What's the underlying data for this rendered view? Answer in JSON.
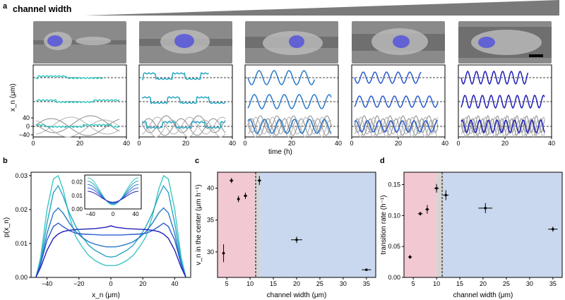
{
  "figure": {
    "panel_labels": {
      "a": "a",
      "b": "b",
      "c": "c",
      "d": "d"
    },
    "channel_width_label": "channel width"
  },
  "panel_a": {
    "x_axis_label": "time (h)",
    "y_axis_label": "x_n (μm)",
    "x_ticks": [
      "0",
      "20",
      "40"
    ],
    "y_ticks": [
      "40",
      "0",
      "−40"
    ],
    "columns": 5,
    "colors": [
      "#3cc8c3",
      "#2aa6c2",
      "#2a79c9",
      "#2a5ccf",
      "#2020b8"
    ]
  },
  "chart_data": [
    {
      "type": "line",
      "panel": "b",
      "xlabel": "x_n (μm)",
      "ylabel": "p(x_n)",
      "xlim": [
        -50,
        50
      ],
      "ylim": [
        0,
        0.031
      ],
      "x_ticks": [
        -40,
        -20,
        0,
        20,
        40
      ],
      "y_ticks": [
        0.0,
        0.01,
        0.02,
        0.03
      ],
      "x": [
        -47,
        -44,
        -40,
        -36,
        -33,
        -30,
        -26,
        -22,
        -18,
        -14,
        -10,
        -6,
        -3,
        0,
        3,
        6,
        10,
        14,
        18,
        22,
        26,
        30,
        33,
        36,
        40,
        44,
        47
      ],
      "series": [
        {
          "color": "#3cc8c3",
          "values": [
            0.0,
            0.006,
            0.02,
            0.029,
            0.03,
            0.026,
            0.018,
            0.012,
            0.009,
            0.0065,
            0.005,
            0.004,
            0.0035,
            0.0035,
            0.0035,
            0.004,
            0.005,
            0.0065,
            0.009,
            0.012,
            0.018,
            0.026,
            0.03,
            0.029,
            0.02,
            0.006,
            0.0
          ]
        },
        {
          "color": "#2aa6c2",
          "values": [
            0.0,
            0.005,
            0.016,
            0.025,
            0.027,
            0.024,
            0.019,
            0.015,
            0.012,
            0.0095,
            0.008,
            0.007,
            0.0062,
            0.006,
            0.0062,
            0.007,
            0.008,
            0.0095,
            0.012,
            0.015,
            0.019,
            0.024,
            0.027,
            0.025,
            0.016,
            0.005,
            0.0
          ]
        },
        {
          "color": "#2a79c9",
          "values": [
            0.0,
            0.004,
            0.013,
            0.019,
            0.0205,
            0.019,
            0.016,
            0.0135,
            0.0118,
            0.0105,
            0.0098,
            0.0093,
            0.009,
            0.009,
            0.009,
            0.0093,
            0.0098,
            0.0105,
            0.0118,
            0.0135,
            0.016,
            0.019,
            0.0205,
            0.019,
            0.013,
            0.004,
            0.0
          ]
        },
        {
          "color": "#2a5ccf",
          "values": [
            0.0,
            0.004,
            0.011,
            0.015,
            0.016,
            0.015,
            0.0138,
            0.013,
            0.0128,
            0.0127,
            0.0126,
            0.0125,
            0.0125,
            0.0125,
            0.0125,
            0.0125,
            0.0126,
            0.0127,
            0.0128,
            0.013,
            0.0138,
            0.015,
            0.016,
            0.015,
            0.011,
            0.004,
            0.0
          ]
        },
        {
          "color": "#2020b8",
          "values": [
            0.0,
            0.003,
            0.008,
            0.0115,
            0.0128,
            0.0135,
            0.0139,
            0.0141,
            0.0142,
            0.0143,
            0.0144,
            0.0146,
            0.0148,
            0.0152,
            0.0148,
            0.0146,
            0.0144,
            0.0143,
            0.0142,
            0.0141,
            0.0139,
            0.0135,
            0.0128,
            0.0115,
            0.008,
            0.003,
            0.0
          ]
        }
      ],
      "inset": {
        "x_ticks": [
          -40,
          0,
          40
        ],
        "y_ticks": [
          0.0,
          0.01,
          0.02
        ],
        "ylim": [
          0,
          0.025
        ]
      }
    },
    {
      "type": "scatter",
      "panel": "c",
      "xlabel": "channel width (μm)",
      "ylabel": "v_n in the center (μm h⁻¹)",
      "xlim": [
        3,
        37
      ],
      "ylim": [
        26,
        42.5
      ],
      "x_ticks": [
        5,
        10,
        15,
        20,
        25,
        30,
        35
      ],
      "y_ticks": [
        30,
        35,
        40
      ],
      "points": [
        {
          "x": 4.3,
          "y": 29.8,
          "xerr": 0.3,
          "yerr": 1.4
        },
        {
          "x": 6.0,
          "y": 41.2,
          "xerr": 0.4,
          "yerr": 0.4
        },
        {
          "x": 7.5,
          "y": 38.3,
          "xerr": 0.3,
          "yerr": 0.5
        },
        {
          "x": 9.0,
          "y": 38.8,
          "xerr": 0.4,
          "yerr": 0.5
        },
        {
          "x": 12.0,
          "y": 41.2,
          "xerr": 0.4,
          "yerr": 0.7
        },
        {
          "x": 20.0,
          "y": 31.9,
          "xerr": 1.2,
          "yerr": 0.5
        },
        {
          "x": 35.0,
          "y": 27.2,
          "xerr": 1.0,
          "yerr": 0.15
        }
      ],
      "regions": [
        {
          "from": 3,
          "to": 11,
          "color": "#f2c8d2"
        },
        {
          "from": 11,
          "to": 12.2,
          "color": "#d4d4d4"
        },
        {
          "from": 12.2,
          "to": 37,
          "color": "#c9d8ee"
        }
      ],
      "dashed_line_x": 11.2
    },
    {
      "type": "scatter",
      "panel": "d",
      "xlabel": "channel width (μm)",
      "ylabel": "transition rate (h⁻¹)",
      "xlim": [
        3,
        37
      ],
      "ylim": [
        0,
        0.17
      ],
      "x_ticks": [
        5,
        10,
        15,
        20,
        25,
        30,
        35
      ],
      "y_ticks": [
        "0.00",
        "0.05",
        "0.10",
        "0.15"
      ],
      "points": [
        {
          "x": 4.3,
          "y": 0.033,
          "xerr": 0.4,
          "yerr": 0.003
        },
        {
          "x": 6.5,
          "y": 0.103,
          "xerr": 0.5,
          "yerr": 0.003
        },
        {
          "x": 8.0,
          "y": 0.11,
          "xerr": 0.4,
          "yerr": 0.007
        },
        {
          "x": 10.0,
          "y": 0.144,
          "xerr": 0.5,
          "yerr": 0.007
        },
        {
          "x": 12.0,
          "y": 0.133,
          "xerr": 0.6,
          "yerr": 0.008
        },
        {
          "x": 20.5,
          "y": 0.112,
          "xerr": 1.5,
          "yerr": 0.008
        },
        {
          "x": 35.0,
          "y": 0.078,
          "xerr": 1.0,
          "yerr": 0.004
        }
      ],
      "regions": [
        {
          "from": 3,
          "to": 10,
          "color": "#f2c8d2"
        },
        {
          "from": 10,
          "to": 11.5,
          "color": "#d4d4d4"
        },
        {
          "from": 11.5,
          "to": 37,
          "color": "#c9d8ee"
        }
      ],
      "dashed_line_x": 11.2
    }
  ]
}
